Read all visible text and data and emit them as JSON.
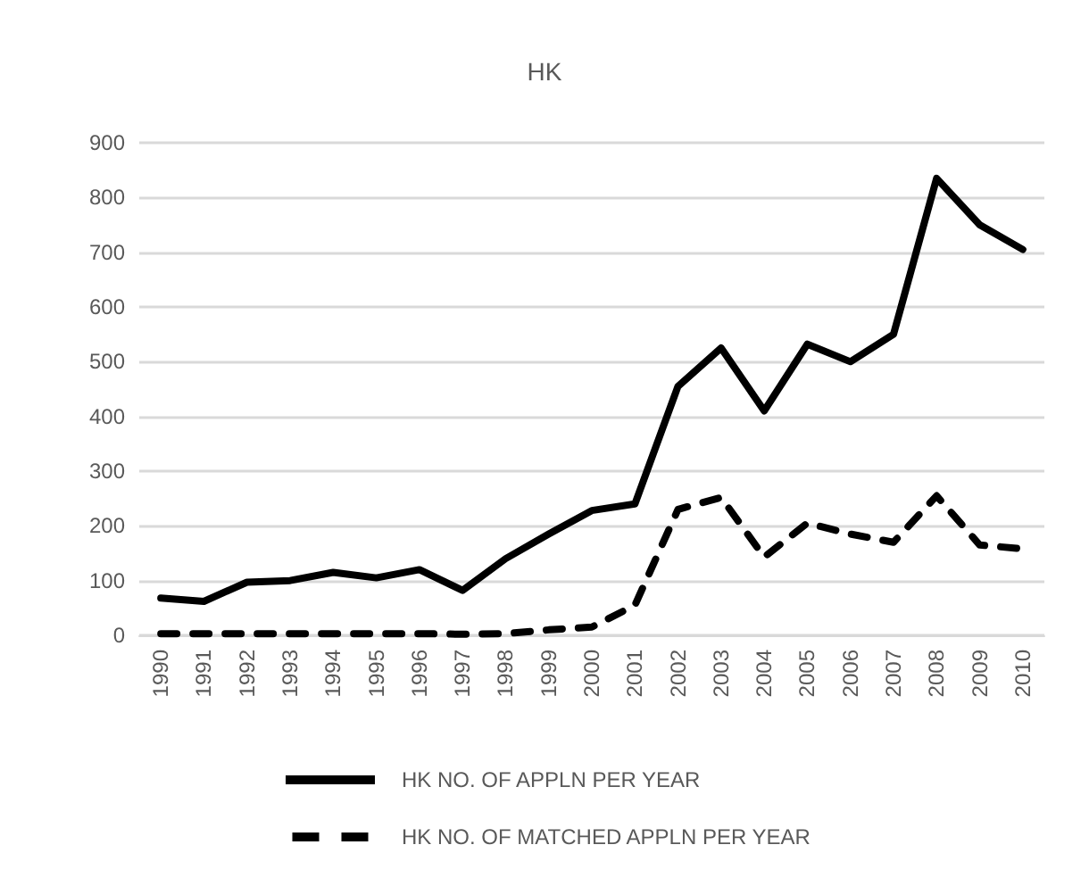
{
  "chart_data": {
    "type": "line",
    "title": "HK",
    "categories": [
      "1990",
      "1991",
      "1992",
      "1993",
      "1994",
      "1995",
      "1996",
      "1997",
      "1998",
      "1999",
      "2000",
      "2001",
      "2002",
      "2003",
      "2004",
      "2005",
      "2006",
      "2007",
      "2008",
      "2009",
      "2010"
    ],
    "series": [
      {
        "name": "HK NO. OF APPLN PER YEAR",
        "color": "#000000",
        "line_style": "solid",
        "values": [
          68,
          62,
          97,
          100,
          115,
          105,
          120,
          82,
          140,
          185,
          228,
          240,
          455,
          525,
          410,
          532,
          500,
          550,
          835,
          750,
          705
        ]
      },
      {
        "name": "HK NO. OF MATCHED APPLN PER YEAR",
        "color": "#000000",
        "line_style": "dashed",
        "values": [
          3,
          3,
          3,
          3,
          3,
          3,
          3,
          2,
          3,
          10,
          15,
          55,
          230,
          252,
          143,
          205,
          185,
          170,
          255,
          165,
          158
        ]
      }
    ],
    "ylim": [
      0,
      900
    ],
    "yticks": [
      0,
      100,
      200,
      300,
      400,
      500,
      600,
      700,
      800,
      900
    ],
    "grid": "y",
    "legend": "bottom",
    "marker": "none"
  }
}
